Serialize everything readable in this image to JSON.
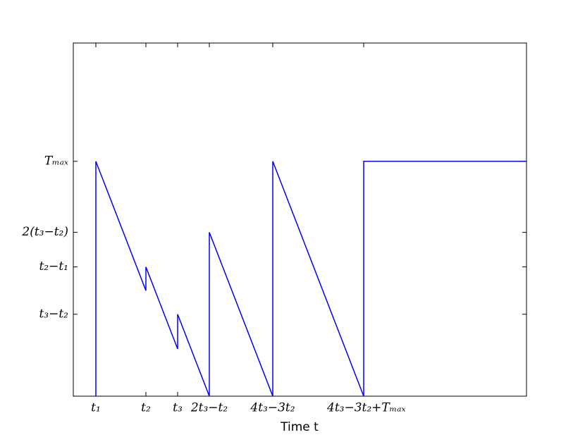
{
  "chart_data": {
    "type": "line",
    "xlabel": "Time t",
    "x": [
      32,
      32,
      103,
      103,
      148,
      148,
      193,
      193,
      283,
      283,
      412,
      412,
      643
    ],
    "series": [
      {
        "color": "#0000ff",
        "values": [
          0,
          129,
          58,
          71,
          26,
          45,
          0,
          90,
          0,
          129,
          0,
          129,
          129
        ]
      }
    ],
    "xlim": [
      0,
      643
    ],
    "ylim": [
      0,
      194
    ],
    "xticks": [
      {
        "value": 32,
        "label": "t₁"
      },
      {
        "value": 103,
        "label": "t₂"
      },
      {
        "value": 148,
        "label": "t₃"
      },
      {
        "value": 193,
        "label": "2t₃−t₂"
      },
      {
        "value": 283,
        "label": "4t₃−3t₂"
      },
      {
        "value": 412,
        "label": "4t₃−3t₂+Tₘₐₓ"
      }
    ],
    "yticks": [
      {
        "value": 45,
        "label": "t₃−t₂"
      },
      {
        "value": 71,
        "label": "t₂−t₁"
      },
      {
        "value": 90,
        "label": "2(t₃−t₂)"
      },
      {
        "value": 129,
        "label": "Tₘₐₓ"
      }
    ],
    "grid": false
  }
}
